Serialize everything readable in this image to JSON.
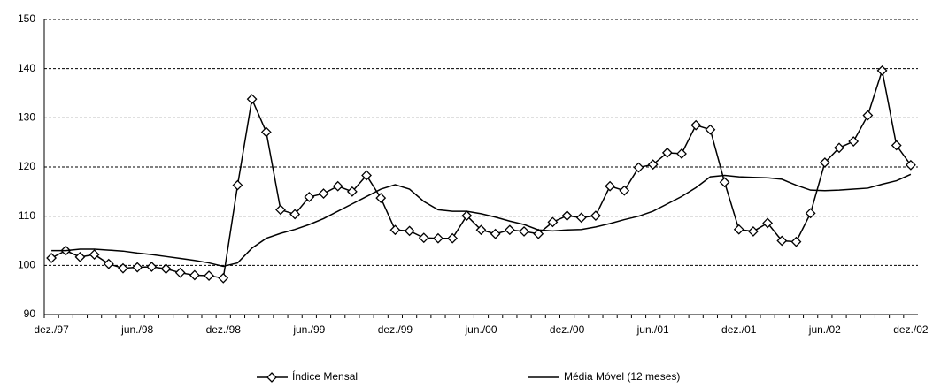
{
  "chart_data": {
    "type": "line",
    "categories": [
      "dez./97",
      null,
      null,
      null,
      null,
      null,
      "jun./98",
      null,
      null,
      null,
      null,
      null,
      "dez./98",
      null,
      null,
      null,
      null,
      null,
      "jun./99",
      null,
      null,
      null,
      null,
      null,
      "dez./99",
      null,
      null,
      null,
      null,
      null,
      "jun./00",
      null,
      null,
      null,
      null,
      null,
      "dez./00",
      null,
      null,
      null,
      null,
      null,
      "jun./01",
      null,
      null,
      null,
      null,
      null,
      "dez./01",
      null,
      null,
      null,
      null,
      null,
      "jun./02",
      null,
      null,
      null,
      null,
      null,
      "dez./02"
    ],
    "series": [
      {
        "name": "Índice Mensal",
        "color": "#000000",
        "marker": "diamond",
        "values": [
          101.5,
          103,
          101.7,
          102.2,
          100.3,
          99.4,
          99.6,
          99.7,
          99.3,
          98.5,
          98,
          97.9,
          97.4,
          116.3,
          133.8,
          127.1,
          111.3,
          110.4,
          113.9,
          114.6,
          116.1,
          115,
          118.3,
          113.7,
          107.2,
          107,
          105.6,
          105.5,
          105.5,
          110.1,
          107.2,
          106.4,
          107.2,
          106.9,
          106.4,
          108.8,
          110.1,
          109.7,
          110.1,
          116.1,
          115.2,
          119.9,
          120.5,
          122.9,
          122.7,
          128.5,
          127.6,
          116.9,
          107.3,
          106.9,
          108.6,
          105,
          104.8,
          110.6,
          120.9,
          123.9,
          125.2,
          130.5,
          139.6,
          124.4,
          120.4
        ]
      },
      {
        "name": "Média Móvel (12 meses)",
        "color": "#000000",
        "marker": "none",
        "values": [
          103,
          103,
          103.3,
          103.3,
          103.1,
          102.9,
          102.5,
          102.2,
          101.8,
          101.4,
          101,
          100.5,
          99.8,
          100.5,
          103.5,
          105.5,
          106.5,
          107.3,
          108.3,
          109.5,
          111,
          112.5,
          114,
          115.5,
          116.4,
          115.5,
          113,
          111.3,
          111,
          111,
          110.5,
          109.8,
          109,
          108.3,
          107.2,
          107,
          107.2,
          107.3,
          107.8,
          108.5,
          109.3,
          110,
          111,
          112.5,
          114,
          115.8,
          118,
          118.3,
          118,
          117.9,
          117.8,
          117.5,
          116.3,
          115.3,
          115.2,
          115.3,
          115.5,
          115.7,
          116.5,
          117.2,
          118.5
        ]
      }
    ],
    "ylim": [
      90,
      150
    ],
    "yticks": [
      90,
      100,
      110,
      120,
      130,
      140,
      150
    ],
    "grid": true,
    "legend": "bottom"
  }
}
